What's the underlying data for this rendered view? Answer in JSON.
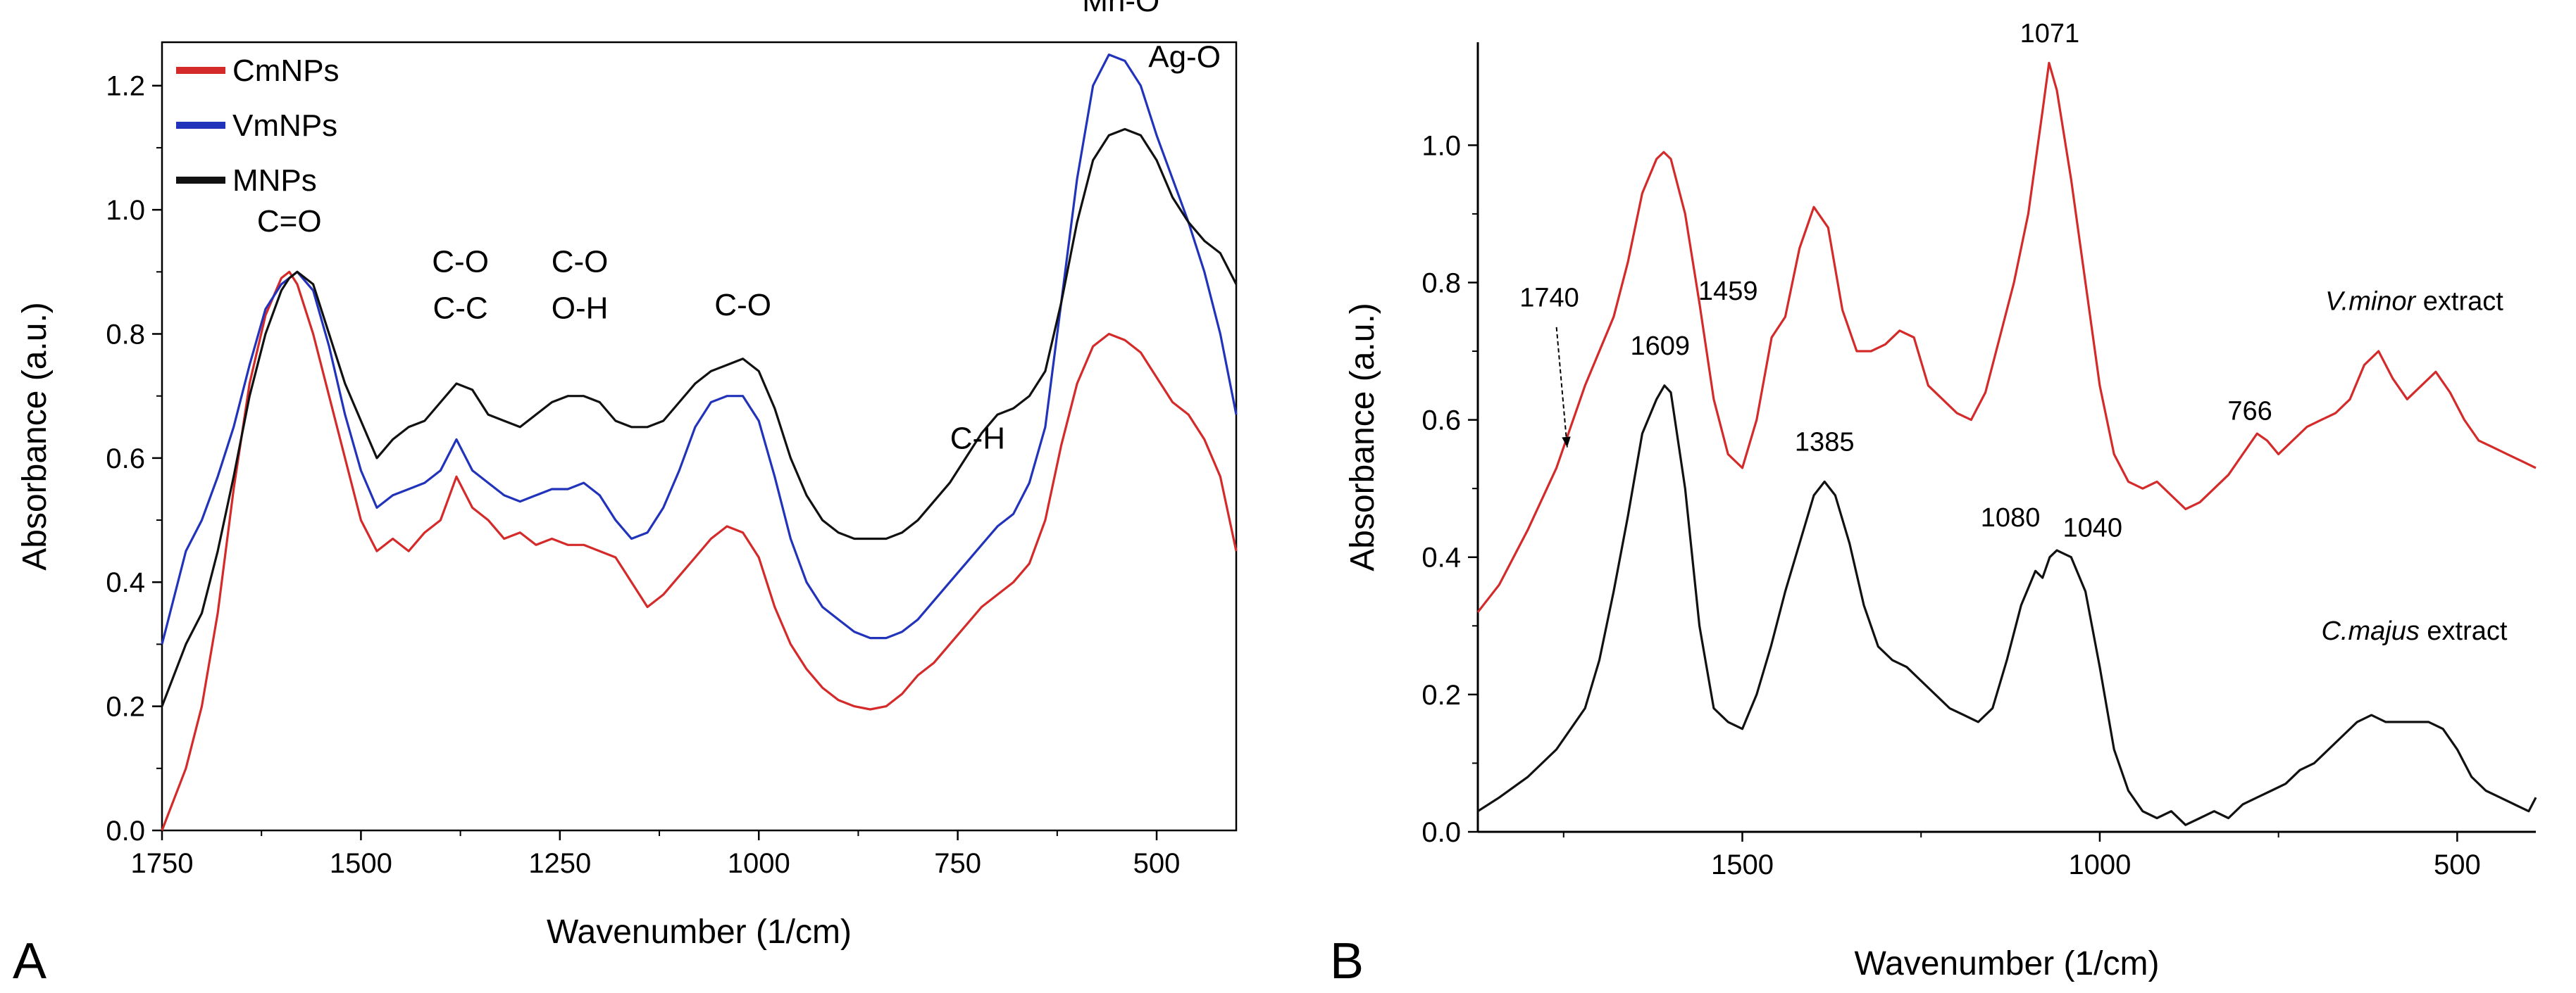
{
  "chart_data": [
    {
      "type": "line",
      "panel_label": "A",
      "xlabel": "Wavenumber (1/cm)",
      "ylabel": "Absorbance (a.u.)",
      "x_reversed": true,
      "xlim": [
        1750,
        400
      ],
      "ylim": [
        0.0,
        1.27
      ],
      "xticks": [
        1750,
        1500,
        1250,
        1000,
        750,
        500
      ],
      "xtick_labels": [
        "1750",
        "1500",
        "1250",
        "1000",
        "750",
        "500"
      ],
      "yticks": [
        0.0,
        0.2,
        0.4,
        0.6,
        0.8,
        1.0,
        1.2
      ],
      "ytick_labels": [
        "0.0",
        "0.2",
        "0.4",
        "0.6",
        "0.8",
        "1.0",
        "1.2"
      ],
      "legend": {
        "position": "top-left",
        "entries": [
          "CmNPs",
          "VmNPs",
          "MNPs"
        ]
      },
      "series": [
        {
          "name": "CmNPs",
          "color": "#d42a2a",
          "x": [
            1750,
            1720,
            1700,
            1680,
            1660,
            1640,
            1620,
            1600,
            1590,
            1580,
            1560,
            1540,
            1520,
            1500,
            1480,
            1460,
            1440,
            1420,
            1400,
            1380,
            1360,
            1340,
            1320,
            1300,
            1280,
            1260,
            1240,
            1220,
            1200,
            1180,
            1160,
            1140,
            1120,
            1100,
            1080,
            1060,
            1040,
            1020,
            1000,
            980,
            960,
            940,
            920,
            900,
            880,
            860,
            840,
            820,
            800,
            780,
            760,
            740,
            720,
            700,
            680,
            660,
            640,
            620,
            600,
            580,
            560,
            540,
            520,
            500,
            480,
            460,
            440,
            420,
            400
          ],
          "y": [
            0.0,
            0.1,
            0.2,
            0.35,
            0.55,
            0.72,
            0.83,
            0.89,
            0.9,
            0.88,
            0.8,
            0.7,
            0.6,
            0.5,
            0.45,
            0.47,
            0.45,
            0.48,
            0.5,
            0.57,
            0.52,
            0.5,
            0.47,
            0.48,
            0.46,
            0.47,
            0.46,
            0.46,
            0.45,
            0.44,
            0.4,
            0.36,
            0.38,
            0.41,
            0.44,
            0.47,
            0.49,
            0.48,
            0.44,
            0.36,
            0.3,
            0.26,
            0.23,
            0.21,
            0.2,
            0.195,
            0.2,
            0.22,
            0.25,
            0.27,
            0.3,
            0.33,
            0.36,
            0.38,
            0.4,
            0.43,
            0.5,
            0.62,
            0.72,
            0.78,
            0.8,
            0.79,
            0.77,
            0.73,
            0.69,
            0.67,
            0.63,
            0.57,
            0.45
          ]
        },
        {
          "name": "VmNPs",
          "color": "#2233bb",
          "x": [
            1750,
            1720,
            1700,
            1680,
            1660,
            1640,
            1620,
            1600,
            1590,
            1580,
            1560,
            1540,
            1520,
            1500,
            1480,
            1460,
            1440,
            1420,
            1400,
            1380,
            1360,
            1340,
            1320,
            1300,
            1280,
            1260,
            1240,
            1220,
            1200,
            1180,
            1160,
            1140,
            1120,
            1100,
            1080,
            1060,
            1040,
            1020,
            1000,
            980,
            960,
            940,
            920,
            900,
            880,
            860,
            840,
            820,
            800,
            780,
            760,
            740,
            720,
            700,
            680,
            660,
            640,
            620,
            600,
            580,
            560,
            540,
            520,
            500,
            480,
            460,
            440,
            420,
            400
          ],
          "y": [
            0.3,
            0.45,
            0.5,
            0.57,
            0.65,
            0.75,
            0.84,
            0.88,
            0.89,
            0.9,
            0.87,
            0.78,
            0.67,
            0.58,
            0.52,
            0.54,
            0.55,
            0.56,
            0.58,
            0.63,
            0.58,
            0.56,
            0.54,
            0.53,
            0.54,
            0.55,
            0.55,
            0.56,
            0.54,
            0.5,
            0.47,
            0.48,
            0.52,
            0.58,
            0.65,
            0.69,
            0.7,
            0.7,
            0.66,
            0.57,
            0.47,
            0.4,
            0.36,
            0.34,
            0.32,
            0.31,
            0.31,
            0.32,
            0.34,
            0.37,
            0.4,
            0.43,
            0.46,
            0.49,
            0.51,
            0.56,
            0.65,
            0.85,
            1.05,
            1.2,
            1.25,
            1.24,
            1.2,
            1.12,
            1.05,
            0.98,
            0.9,
            0.8,
            0.67
          ]
        },
        {
          "name": "MNPs",
          "color": "#111111",
          "x": [
            1750,
            1720,
            1700,
            1680,
            1660,
            1640,
            1620,
            1600,
            1590,
            1580,
            1560,
            1540,
            1520,
            1500,
            1480,
            1460,
            1440,
            1420,
            1400,
            1380,
            1360,
            1340,
            1320,
            1300,
            1280,
            1260,
            1240,
            1220,
            1200,
            1180,
            1160,
            1140,
            1120,
            1100,
            1080,
            1060,
            1040,
            1020,
            1000,
            980,
            960,
            940,
            920,
            900,
            880,
            860,
            840,
            820,
            800,
            780,
            760,
            740,
            720,
            700,
            680,
            660,
            640,
            620,
            600,
            580,
            560,
            540,
            520,
            500,
            480,
            460,
            440,
            420,
            400
          ],
          "y": [
            0.2,
            0.3,
            0.35,
            0.45,
            0.57,
            0.7,
            0.8,
            0.87,
            0.89,
            0.9,
            0.88,
            0.8,
            0.72,
            0.66,
            0.6,
            0.63,
            0.65,
            0.66,
            0.69,
            0.72,
            0.71,
            0.67,
            0.66,
            0.65,
            0.67,
            0.69,
            0.7,
            0.7,
            0.69,
            0.66,
            0.65,
            0.65,
            0.66,
            0.69,
            0.72,
            0.74,
            0.75,
            0.76,
            0.74,
            0.68,
            0.6,
            0.54,
            0.5,
            0.48,
            0.47,
            0.47,
            0.47,
            0.48,
            0.5,
            0.53,
            0.56,
            0.6,
            0.64,
            0.67,
            0.68,
            0.7,
            0.74,
            0.85,
            0.98,
            1.08,
            1.12,
            1.13,
            1.12,
            1.08,
            1.02,
            0.98,
            0.95,
            0.93,
            0.88
          ]
        }
      ],
      "annotations": [
        {
          "text": "C=O",
          "x": 1590,
          "y": 0.965
        },
        {
          "text": "C-O",
          "x": 1375,
          "y": 0.9
        },
        {
          "text": "C-C",
          "x": 1375,
          "y": 0.825
        },
        {
          "text": "C-O",
          "x": 1225,
          "y": 0.9
        },
        {
          "text": "O-H",
          "x": 1225,
          "y": 0.825
        },
        {
          "text": "C-O",
          "x": 1020,
          "y": 0.83
        },
        {
          "text": "C-H",
          "x": 725,
          "y": 0.615
        },
        {
          "text": "Mn-O",
          "x": 545,
          "y": 1.32
        },
        {
          "text": "Ag-O",
          "x": 465,
          "y": 1.23
        }
      ]
    },
    {
      "type": "line",
      "panel_label": "B",
      "xlabel": "Wavenumber (1/cm)",
      "ylabel": "Absorbance (a.u.)",
      "x_reversed": true,
      "xlim": [
        1870,
        390
      ],
      "ylim": [
        0.0,
        1.15
      ],
      "xticks": [
        1500,
        1000,
        500
      ],
      "xtick_labels": [
        "1500",
        "1000",
        "500"
      ],
      "yticks": [
        0.0,
        0.2,
        0.4,
        0.6,
        0.8,
        1.0
      ],
      "ytick_labels": [
        "0.0",
        "0.2",
        "0.4",
        "0.6",
        "0.8",
        "1.0"
      ],
      "series": [
        {
          "name": "V.minor extract",
          "color": "#d42a2a",
          "x": [
            1870,
            1840,
            1800,
            1760,
            1740,
            1720,
            1700,
            1680,
            1660,
            1640,
            1620,
            1610,
            1600,
            1580,
            1560,
            1540,
            1520,
            1500,
            1480,
            1459,
            1440,
            1420,
            1400,
            1380,
            1360,
            1340,
            1320,
            1300,
            1280,
            1260,
            1240,
            1220,
            1200,
            1180,
            1160,
            1140,
            1120,
            1100,
            1080,
            1071,
            1060,
            1040,
            1020,
            1000,
            980,
            960,
            940,
            920,
            900,
            880,
            860,
            840,
            820,
            800,
            780,
            766,
            750,
            730,
            710,
            690,
            670,
            650,
            630,
            610,
            590,
            570,
            550,
            530,
            510,
            490,
            470,
            450,
            430,
            410,
            390
          ],
          "y": [
            0.32,
            0.36,
            0.44,
            0.53,
            0.59,
            0.65,
            0.7,
            0.75,
            0.83,
            0.93,
            0.98,
            0.99,
            0.98,
            0.9,
            0.77,
            0.63,
            0.55,
            0.53,
            0.6,
            0.72,
            0.75,
            0.85,
            0.91,
            0.88,
            0.76,
            0.7,
            0.7,
            0.71,
            0.73,
            0.72,
            0.65,
            0.63,
            0.61,
            0.6,
            0.64,
            0.72,
            0.8,
            0.9,
            1.05,
            1.12,
            1.08,
            0.95,
            0.8,
            0.65,
            0.55,
            0.51,
            0.5,
            0.51,
            0.49,
            0.47,
            0.48,
            0.5,
            0.52,
            0.55,
            0.58,
            0.57,
            0.55,
            0.57,
            0.59,
            0.6,
            0.61,
            0.63,
            0.68,
            0.7,
            0.66,
            0.63,
            0.65,
            0.67,
            0.64,
            0.6,
            0.57,
            0.56,
            0.55,
            0.54,
            0.53
          ]
        },
        {
          "name": "C.majus extract",
          "color": "#111111",
          "x": [
            1870,
            1840,
            1800,
            1760,
            1720,
            1700,
            1680,
            1660,
            1640,
            1620,
            1609,
            1600,
            1580,
            1560,
            1540,
            1520,
            1500,
            1480,
            1460,
            1440,
            1420,
            1400,
            1385,
            1370,
            1350,
            1330,
            1310,
            1290,
            1270,
            1250,
            1230,
            1210,
            1190,
            1170,
            1150,
            1130,
            1110,
            1090,
            1080,
            1070,
            1060,
            1040,
            1020,
            1000,
            980,
            960,
            940,
            920,
            900,
            880,
            860,
            840,
            820,
            800,
            780,
            760,
            740,
            720,
            700,
            680,
            660,
            640,
            620,
            600,
            580,
            560,
            540,
            520,
            500,
            480,
            460,
            440,
            420,
            400,
            390
          ],
          "y": [
            0.03,
            0.05,
            0.08,
            0.12,
            0.18,
            0.25,
            0.35,
            0.46,
            0.58,
            0.63,
            0.65,
            0.64,
            0.5,
            0.3,
            0.18,
            0.16,
            0.15,
            0.2,
            0.27,
            0.35,
            0.42,
            0.49,
            0.51,
            0.49,
            0.42,
            0.33,
            0.27,
            0.25,
            0.24,
            0.22,
            0.2,
            0.18,
            0.17,
            0.16,
            0.18,
            0.25,
            0.33,
            0.38,
            0.37,
            0.4,
            0.41,
            0.4,
            0.35,
            0.24,
            0.12,
            0.06,
            0.03,
            0.02,
            0.03,
            0.01,
            0.02,
            0.03,
            0.02,
            0.04,
            0.05,
            0.06,
            0.07,
            0.09,
            0.1,
            0.12,
            0.14,
            0.16,
            0.17,
            0.16,
            0.16,
            0.16,
            0.16,
            0.15,
            0.12,
            0.08,
            0.06,
            0.05,
            0.04,
            0.03,
            0.05
          ]
        }
      ],
      "annotations": [
        {
          "text": "1740",
          "x": 1770,
          "y": 0.765
        },
        {
          "text": "1609",
          "x": 1615,
          "y": 0.695
        },
        {
          "text": "1459",
          "x": 1520,
          "y": 0.775
        },
        {
          "text": "1071",
          "x": 1070,
          "y": 1.15
        },
        {
          "text": "1385",
          "x": 1385,
          "y": 0.555
        },
        {
          "text": "1080",
          "x": 1125,
          "y": 0.445
        },
        {
          "text": "1040",
          "x": 1010,
          "y": 0.43
        },
        {
          "text": "766",
          "x": 790,
          "y": 0.6
        }
      ],
      "series_labels": [
        {
          "italic": "V.minor",
          "rest": " extract",
          "x": 560,
          "y": 0.76
        },
        {
          "italic": "C.majus",
          "rest": " extract",
          "x": 560,
          "y": 0.28
        }
      ]
    }
  ]
}
